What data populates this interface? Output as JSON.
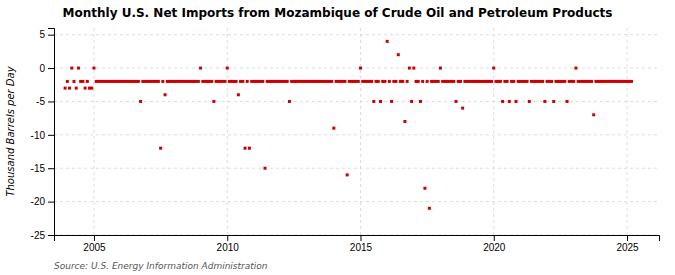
{
  "chart_data": {
    "type": "scatter",
    "title": "Monthly U.S. Net Imports from Mozambique of Crude Oil and Petroleum Products",
    "ylabel": "Thousand Barrels per Day",
    "source": "Source: U.S. Energy Information Administration",
    "xlim": [
      2003.5,
      2026.2
    ],
    "ylim": [
      -25,
      6
    ],
    "xticks": [
      2005,
      2010,
      2015,
      2020,
      2025
    ],
    "yticks": [
      5,
      0,
      -5,
      -10,
      -15,
      -20,
      -25
    ],
    "grid": true,
    "color": "#cc0000",
    "marker": "square",
    "x": [
      2003.917,
      2004.0,
      2004.083,
      2004.167,
      2004.25,
      2004.333,
      2004.417,
      2004.5,
      2004.583,
      2004.667,
      2004.75,
      2004.833,
      2004.917,
      2005.0,
      2005.083,
      2005.167,
      2005.25,
      2005.333,
      2005.417,
      2005.5,
      2005.583,
      2005.667,
      2005.75,
      2005.833,
      2005.917,
      2006.0,
      2006.083,
      2006.167,
      2006.25,
      2006.333,
      2006.417,
      2006.5,
      2006.583,
      2006.667,
      2006.75,
      2006.833,
      2006.917,
      2007.0,
      2007.083,
      2007.167,
      2007.25,
      2007.333,
      2007.417,
      2007.5,
      2007.583,
      2007.667,
      2007.75,
      2007.833,
      2007.917,
      2008.0,
      2008.083,
      2008.167,
      2008.25,
      2008.333,
      2008.417,
      2008.5,
      2008.583,
      2008.667,
      2008.75,
      2008.833,
      2008.917,
      2009.0,
      2009.083,
      2009.167,
      2009.25,
      2009.333,
      2009.417,
      2009.5,
      2009.583,
      2009.667,
      2009.75,
      2009.833,
      2009.917,
      2010.0,
      2010.083,
      2010.167,
      2010.25,
      2010.333,
      2010.417,
      2010.5,
      2010.583,
      2010.667,
      2010.75,
      2010.833,
      2010.917,
      2011.0,
      2011.083,
      2011.167,
      2011.25,
      2011.333,
      2011.417,
      2011.5,
      2011.583,
      2011.667,
      2011.75,
      2011.833,
      2011.917,
      2012.0,
      2012.083,
      2012.167,
      2012.25,
      2012.333,
      2012.417,
      2012.5,
      2012.583,
      2012.667,
      2012.75,
      2012.833,
      2012.917,
      2013.0,
      2013.083,
      2013.167,
      2013.25,
      2013.333,
      2013.417,
      2013.5,
      2013.583,
      2013.667,
      2013.75,
      2013.833,
      2013.917,
      2014.0,
      2014.083,
      2014.167,
      2014.25,
      2014.333,
      2014.417,
      2014.5,
      2014.583,
      2014.667,
      2014.75,
      2014.833,
      2014.917,
      2015.0,
      2015.083,
      2015.167,
      2015.25,
      2015.333,
      2015.417,
      2015.5,
      2015.583,
      2015.667,
      2015.75,
      2015.833,
      2015.917,
      2016.0,
      2016.083,
      2016.167,
      2016.25,
      2016.333,
      2016.417,
      2016.5,
      2016.583,
      2016.667,
      2016.75,
      2016.833,
      2016.917,
      2017.0,
      2017.083,
      2017.167,
      2017.25,
      2017.333,
      2017.417,
      2017.5,
      2017.583,
      2017.667,
      2017.75,
      2017.833,
      2017.917,
      2018.0,
      2018.083,
      2018.167,
      2018.25,
      2018.333,
      2018.417,
      2018.5,
      2018.583,
      2018.667,
      2018.75,
      2018.833,
      2018.917,
      2019.0,
      2019.083,
      2019.167,
      2019.25,
      2019.333,
      2019.417,
      2019.5,
      2019.583,
      2019.667,
      2019.75,
      2019.833,
      2019.917,
      2020.0,
      2020.083,
      2020.167,
      2020.25,
      2020.333,
      2020.417,
      2020.5,
      2020.583,
      2020.667,
      2020.75,
      2020.833,
      2020.917,
      2021.0,
      2021.083,
      2021.167,
      2021.25,
      2021.333,
      2021.417,
      2021.5,
      2021.583,
      2021.667,
      2021.75,
      2021.833,
      2021.917,
      2022.0,
      2022.083,
      2022.167,
      2022.25,
      2022.333,
      2022.417,
      2022.5,
      2022.583,
      2022.667,
      2022.75,
      2022.833,
      2022.917,
      2023.0,
      2023.083,
      2023.167,
      2023.25,
      2023.333,
      2023.417,
      2023.5,
      2023.583,
      2023.667,
      2023.75,
      2023.833,
      2023.917,
      2024.0,
      2024.083,
      2024.167,
      2024.25,
      2024.333,
      2024.417,
      2024.5,
      2024.583,
      2024.667,
      2024.75,
      2024.833,
      2024.917,
      2025.0,
      2025.083,
      2025.167
    ],
    "values": [
      -3,
      -2,
      -3,
      0,
      -2,
      -3,
      0,
      -2,
      -2,
      -3,
      -2,
      -3,
      -3,
      0,
      -2,
      -2,
      -2,
      -2,
      -2,
      -2,
      -2,
      -2,
      -2,
      -2,
      -2,
      -2,
      -2,
      -2,
      -2,
      -2,
      -2,
      -2,
      -2,
      -2,
      -5,
      -2,
      -2,
      -2,
      -2,
      -2,
      -2,
      -2,
      -2,
      -12,
      -2,
      -4,
      -2,
      -2,
      -2,
      -2,
      -2,
      -2,
      -2,
      -2,
      -2,
      -2,
      -2,
      -2,
      -2,
      -2,
      -2,
      0,
      -2,
      -2,
      -2,
      -2,
      -2,
      -5,
      -2,
      -2,
      -2,
      -2,
      -2,
      0,
      -2,
      -2,
      -2,
      -2,
      -4,
      -2,
      -2,
      -12,
      -2,
      -12,
      -2,
      -2,
      -2,
      -2,
      -2,
      -2,
      -15,
      -2,
      -2,
      -2,
      -2,
      -2,
      -2,
      -2,
      -2,
      -2,
      -2,
      -5,
      -2,
      -2,
      -2,
      -2,
      -2,
      -2,
      -2,
      -2,
      -2,
      -2,
      -2,
      -2,
      -2,
      -2,
      -2,
      -2,
      -2,
      -2,
      -2,
      -9,
      -2,
      -2,
      -2,
      -2,
      -2,
      -16,
      -2,
      -2,
      -2,
      -2,
      -2,
      0,
      -2,
      -2,
      -2,
      -2,
      -2,
      -5,
      -2,
      -2,
      -5,
      -2,
      -2,
      4,
      -2,
      -5,
      -2,
      -2,
      2,
      -2,
      -2,
      -8,
      -2,
      0,
      -5,
      0,
      -2,
      -2,
      -5,
      -2,
      -18,
      -2,
      -21,
      -2,
      -2,
      -2,
      -2,
      0,
      -2,
      -2,
      -2,
      -2,
      -2,
      -2,
      -5,
      -2,
      -2,
      -6,
      -2,
      -2,
      -2,
      -2,
      -2,
      -2,
      -2,
      -2,
      -2,
      -2,
      -2,
      -2,
      -2,
      0,
      -2,
      -2,
      -2,
      -5,
      -2,
      -2,
      -5,
      -2,
      -2,
      -5,
      -2,
      -2,
      -2,
      -2,
      -2,
      -5,
      -2,
      -2,
      -2,
      -2,
      -2,
      -2,
      -5,
      -2,
      -2,
      -2,
      -5,
      -2,
      -2,
      -2,
      -2,
      -2,
      -5,
      -2,
      -2,
      -2,
      0,
      -2,
      -2,
      -2,
      -2,
      -2,
      -2,
      -2,
      -7,
      -2,
      -2,
      -2,
      -2,
      -2,
      -2,
      -2,
      -2,
      -2,
      -2,
      -2,
      -2,
      -2,
      -2,
      -2,
      -2,
      -2
    ]
  }
}
